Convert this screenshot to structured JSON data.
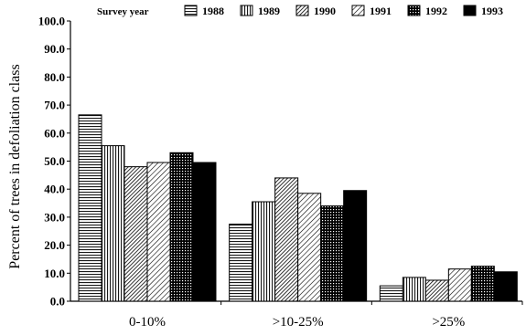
{
  "chart_data": {
    "type": "bar",
    "ylabel": "Percent of trees in defoliation class",
    "xlabel": "",
    "ylim": [
      0,
      100
    ],
    "yticks": [
      "0.0",
      "10.0",
      "20.0",
      "30.0",
      "40.0",
      "50.0",
      "60.0",
      "70.0",
      "80.0",
      "90.0",
      "100.0"
    ],
    "categories": [
      "0-10%",
      ">10-25%",
      ">25%"
    ],
    "legend_title": "Survey year",
    "legend_position": "top",
    "grid": false,
    "series": [
      {
        "name": "1988",
        "pattern": "horizontal",
        "values": [
          66.5,
          27.5,
          5.5
        ]
      },
      {
        "name": "1989",
        "pattern": "vertical",
        "values": [
          55.5,
          35.5,
          8.5
        ]
      },
      {
        "name": "1990",
        "pattern": "diagonal-dense",
        "values": [
          48.0,
          44.0,
          7.5
        ]
      },
      {
        "name": "1991",
        "pattern": "diagonal",
        "values": [
          49.5,
          38.5,
          11.5
        ]
      },
      {
        "name": "1992",
        "pattern": "grid",
        "values": [
          53.0,
          34.0,
          12.5
        ]
      },
      {
        "name": "1993",
        "pattern": "solid",
        "values": [
          49.5,
          39.5,
          10.5
        ]
      }
    ]
  }
}
